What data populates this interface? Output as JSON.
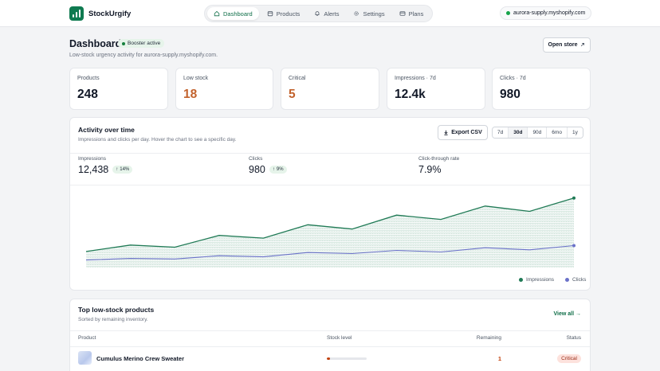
{
  "app": {
    "name": "StockUrgify",
    "logo_icon": "bar-chart-icon"
  },
  "nav": [
    {
      "label": "Dashboard",
      "icon": "home-icon",
      "active": true
    },
    {
      "label": "Products",
      "icon": "box-icon",
      "active": false
    },
    {
      "label": "Alerts",
      "icon": "bell-icon",
      "active": false
    },
    {
      "label": "Settings",
      "icon": "gear-icon",
      "active": false
    },
    {
      "label": "Plans",
      "icon": "card-icon",
      "active": false
    }
  ],
  "store": {
    "domain": "aurora-supply.myshopify.com"
  },
  "header": {
    "title": "Dashboard",
    "badge": "Booster active",
    "subtitle": "Low-stock urgency activity for aurora-supply.myshopify.com.",
    "open_store": "Open store"
  },
  "stats": [
    {
      "label": "Products",
      "value": "248",
      "color": "#111827"
    },
    {
      "label": "Low stock",
      "value": "18",
      "color": "#c2622d"
    },
    {
      "label": "Critical",
      "value": "5",
      "color": "#c2622d"
    },
    {
      "label": "Impressions · 7d",
      "value": "12.4k",
      "color": "#111827"
    },
    {
      "label": "Clicks · 7d",
      "value": "980",
      "color": "#111827"
    }
  ],
  "activity": {
    "title": "Activity over time",
    "subtitle": "Impressions and clicks per day. Hover the chart to see a specific day.",
    "export": "Export CSV",
    "ranges": [
      {
        "label": "7d",
        "active": false
      },
      {
        "label": "30d",
        "active": true
      },
      {
        "label": "90d",
        "active": false
      },
      {
        "label": "6mo",
        "active": false
      },
      {
        "label": "1y",
        "active": false
      }
    ],
    "metrics": {
      "impressions": {
        "label": "Impressions",
        "value": "12,438",
        "delta": "14%"
      },
      "clicks": {
        "label": "Clicks",
        "value": "980",
        "delta": "9%"
      },
      "ctr": {
        "label": "Click-through rate",
        "value": "7.9%"
      }
    }
  },
  "chart_data": {
    "type": "line",
    "x": [
      1,
      2,
      3,
      4,
      5,
      6,
      7,
      8,
      9,
      10,
      11,
      12
    ],
    "series": [
      {
        "name": "Impressions",
        "color": "#1f7a55",
        "values": [
          30,
          42,
          38,
          60,
          55,
          80,
          72,
          98,
          90,
          115,
          105,
          130
        ]
      },
      {
        "name": "Clicks",
        "color": "#6b72c9",
        "values": [
          14,
          17,
          16,
          22,
          20,
          28,
          26,
          32,
          29,
          37,
          33,
          41
        ]
      }
    ],
    "ylim": [
      0,
      140
    ],
    "grid": false,
    "legend": "bottom-right"
  },
  "table": {
    "title": "Top low-stock products",
    "subtitle": "Sorted by remaining inventory.",
    "view_all": "View all →",
    "columns": {
      "product": "Product",
      "stock": "Stock level",
      "remaining": "Remaining",
      "status": "Status"
    },
    "rows": [
      {
        "product": "Cumulus Merino Crew Sweater",
        "stock_fraction": 0.08,
        "remaining": "1",
        "status": "Critical"
      }
    ]
  }
}
